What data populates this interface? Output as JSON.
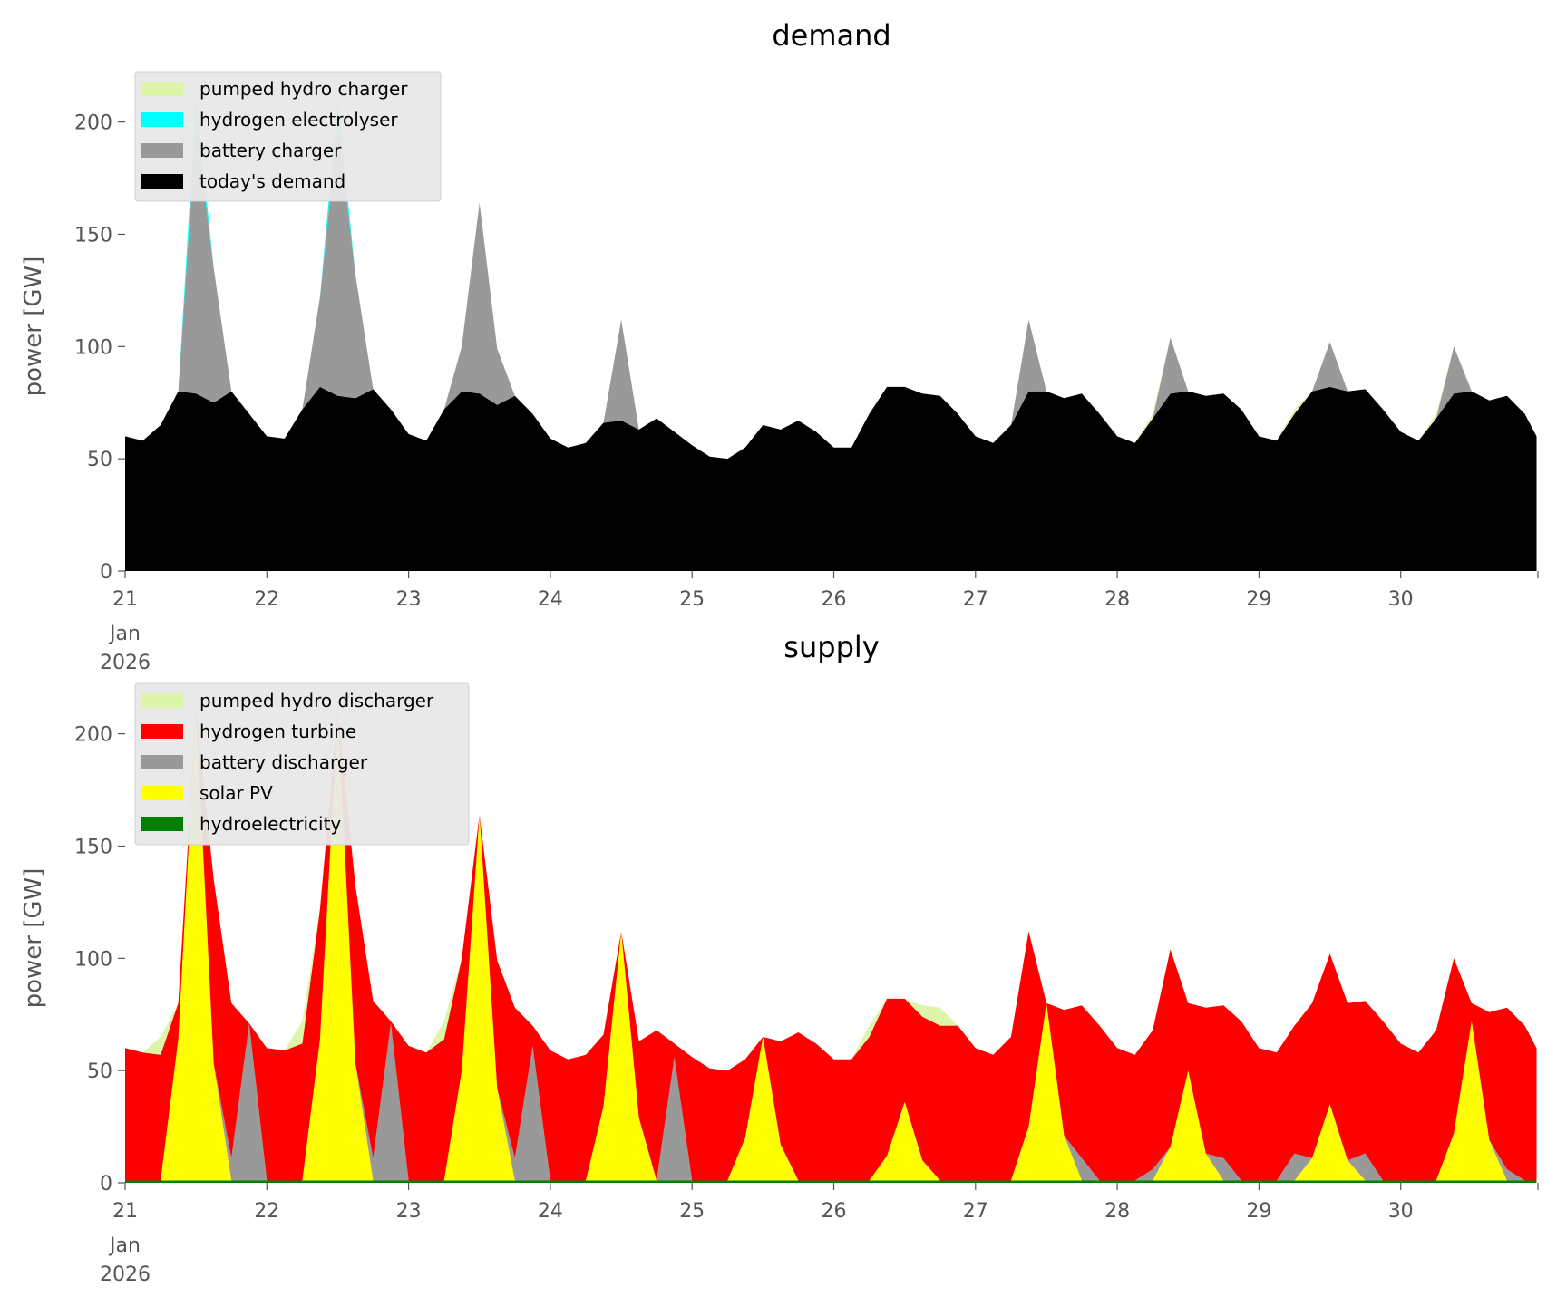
{
  "chart_data": [
    {
      "type": "area",
      "stacked": true,
      "title": "demand",
      "xlabel": "",
      "ylabel": "power [GW]",
      "ylim": [
        0,
        220
      ],
      "yticks": [
        "0",
        "50",
        "100",
        "150",
        "200"
      ],
      "ytick_values": [
        0,
        50,
        100,
        150,
        200
      ],
      "xticks": [
        "21",
        "22",
        "23",
        "24",
        "25",
        "26",
        "27",
        "28",
        "29",
        "30"
      ],
      "xtick_sub": [
        "Jan",
        "2026"
      ],
      "x_start": "2026-01-21 00:00",
      "x_step_hours": 3,
      "x_last_hour": 239,
      "legend_position": "upper-left",
      "legend": [
        "pumped hydro charger",
        "hydrogen electrolyser",
        "battery charger",
        "today's demand"
      ],
      "series": [
        {
          "name": "today's demand",
          "color": "#000000",
          "values": [
            60,
            58,
            65,
            80,
            79,
            75,
            80,
            70,
            60,
            59,
            72,
            82,
            78,
            77,
            81,
            72,
            61,
            58,
            72,
            80,
            79,
            74,
            78,
            70,
            59,
            55,
            57,
            66,
            67,
            63,
            68,
            62,
            56,
            51,
            50,
            55,
            65,
            63,
            67,
            62,
            55,
            55,
            70,
            82,
            82,
            79,
            78,
            70,
            60,
            57,
            65,
            80,
            80,
            77,
            79,
            70,
            60,
            57,
            68,
            79,
            80,
            78,
            79,
            72,
            60,
            58,
            70,
            80,
            82,
            80,
            81,
            72,
            62,
            58,
            68,
            79,
            80,
            76,
            78,
            70,
            60
          ]
        },
        {
          "name": "battery charger",
          "color": "#999999",
          "values": [
            0,
            0,
            0,
            0,
            120,
            60,
            0,
            0,
            0,
            0,
            0,
            40,
            122,
            55,
            0,
            0,
            0,
            0,
            0,
            20,
            85,
            25,
            0,
            0,
            0,
            0,
            0,
            0,
            45,
            0,
            0,
            0,
            0,
            0,
            0,
            0,
            0,
            0,
            0,
            0,
            0,
            0,
            0,
            0,
            0,
            0,
            0,
            0,
            0,
            0,
            0,
            32,
            0,
            0,
            0,
            0,
            0,
            0,
            0,
            25,
            0,
            0,
            0,
            0,
            0,
            0,
            0,
            0,
            20,
            0,
            0,
            0,
            0,
            0,
            0,
            21,
            0,
            0,
            0,
            0,
            0
          ]
        },
        {
          "name": "hydrogen electrolyser",
          "color": "#00ffff",
          "values": [
            0,
            0,
            0,
            0,
            12,
            0,
            0,
            0,
            0,
            0,
            0,
            0,
            10,
            0,
            0,
            0,
            0,
            0,
            0,
            0,
            0,
            0,
            0,
            0,
            0,
            0,
            0,
            0,
            0,
            0,
            0,
            0,
            0,
            0,
            0,
            0,
            0,
            0,
            0,
            0,
            0,
            0,
            0,
            0,
            0,
            0,
            0,
            0,
            0,
            0,
            0,
            0,
            0,
            0,
            0,
            0,
            0,
            0,
            0,
            0,
            0,
            0,
            0,
            0,
            0,
            0,
            0,
            0,
            0,
            0,
            0,
            0,
            0,
            0,
            0,
            0,
            0,
            0,
            0,
            0,
            0
          ]
        },
        {
          "name": "pumped hydro charger",
          "color": "#ddf5a8",
          "values": [
            0,
            0,
            0,
            0,
            0,
            0,
            0,
            0,
            0,
            0,
            0,
            0,
            0,
            0,
            0,
            0,
            0,
            0,
            0,
            0,
            0,
            0,
            0,
            0,
            0,
            0,
            0,
            0,
            0,
            0,
            0,
            0,
            0,
            0,
            0,
            0,
            0,
            0,
            0,
            0,
            0,
            0,
            0,
            0,
            0,
            0,
            0,
            0,
            0,
            0,
            0,
            0,
            0,
            0,
            0,
            0,
            0,
            0,
            2,
            0,
            0,
            0,
            0,
            0,
            0,
            0,
            2,
            0,
            0,
            0,
            0,
            0,
            0,
            0,
            2,
            0,
            0,
            0,
            0,
            0,
            0
          ]
        }
      ]
    },
    {
      "type": "area",
      "stacked": true,
      "title": "supply",
      "xlabel": "",
      "ylabel": "power [GW]",
      "ylim": [
        0,
        220
      ],
      "yticks": [
        "0",
        "50",
        "100",
        "150",
        "200"
      ],
      "ytick_values": [
        0,
        50,
        100,
        150,
        200
      ],
      "xticks": [
        "21",
        "22",
        "23",
        "24",
        "25",
        "26",
        "27",
        "28",
        "29",
        "30"
      ],
      "xtick_sub": [
        "Jan",
        "2026"
      ],
      "x_start": "2026-01-21 00:00",
      "x_step_hours": 3,
      "x_last_hour": 239,
      "legend_position": "upper-left",
      "legend": [
        "pumped hydro discharger",
        "hydrogen turbine",
        "battery discharger",
        "solar PV",
        "hydroelectricity"
      ],
      "series": [
        {
          "name": "hydroelectricity",
          "color": "#008000",
          "values": [
            1,
            1,
            1,
            1,
            1,
            1,
            1,
            1,
            1,
            1,
            1,
            1,
            1,
            1,
            1,
            1,
            1,
            1,
            1,
            1,
            1,
            1,
            1,
            1,
            1,
            1,
            1,
            1,
            1,
            1,
            1,
            1,
            1,
            1,
            1,
            1,
            1,
            1,
            1,
            1,
            1,
            1,
            1,
            1,
            1,
            1,
            1,
            1,
            1,
            1,
            1,
            1,
            1,
            1,
            1,
            1,
            1,
            1,
            1,
            1,
            1,
            1,
            1,
            1,
            1,
            1,
            1,
            1,
            1,
            1,
            1,
            1,
            1,
            1,
            1,
            1,
            1,
            1,
            1,
            1,
            1
          ]
        },
        {
          "name": "solar PV",
          "color": "#ffff00",
          "values": [
            0,
            0,
            0,
            63,
            210,
            52,
            0,
            0,
            0,
            0,
            0,
            63,
            209,
            52,
            0,
            0,
            0,
            0,
            0,
            49,
            163,
            41,
            0,
            0,
            0,
            0,
            0,
            33,
            111,
            28,
            0,
            0,
            0,
            0,
            0,
            19,
            64,
            16,
            0,
            0,
            0,
            0,
            0,
            11,
            35,
            9,
            0,
            0,
            0,
            0,
            0,
            24,
            79,
            20,
            0,
            0,
            0,
            0,
            0,
            15,
            49,
            12,
            0,
            0,
            0,
            0,
            0,
            10,
            34,
            9,
            0,
            0,
            0,
            0,
            0,
            21,
            71,
            18,
            0,
            0,
            0
          ]
        },
        {
          "name": "battery discharger",
          "color": "#999999",
          "values": [
            0,
            0,
            0,
            0,
            0,
            0,
            10,
            70,
            0,
            0,
            0,
            0,
            0,
            0,
            10,
            70,
            0,
            0,
            0,
            0,
            0,
            0,
            10,
            60,
            0,
            0,
            0,
            0,
            0,
            0,
            0,
            55,
            0,
            0,
            0,
            0,
            0,
            0,
            0,
            0,
            0,
            0,
            0,
            0,
            0,
            0,
            0,
            0,
            0,
            0,
            0,
            0,
            0,
            0,
            10,
            0,
            0,
            0,
            5,
            0,
            0,
            0,
            10,
            0,
            0,
            0,
            12,
            0,
            0,
            0,
            12,
            0,
            0,
            0,
            0,
            0,
            0,
            0,
            5,
            0,
            0
          ]
        },
        {
          "name": "hydrogen turbine",
          "color": "#ff0000",
          "values": [
            59,
            57,
            56,
            16,
            0,
            82,
            69,
            0,
            59,
            58,
            61,
            58,
            0,
            79,
            70,
            1,
            60,
            57,
            63,
            50,
            0,
            57,
            67,
            9,
            58,
            54,
            56,
            32,
            0,
            34,
            67,
            6,
            55,
            50,
            49,
            35,
            0,
            46,
            66,
            61,
            54,
            54,
            64,
            70,
            46,
            64,
            69,
            69,
            59,
            56,
            64,
            87,
            0,
            56,
            68,
            69,
            59,
            56,
            62,
            88,
            30,
            65,
            68,
            71,
            59,
            57,
            57,
            69,
            67,
            70,
            68,
            71,
            61,
            57,
            67,
            78,
            8,
            57,
            72,
            69,
            59
          ]
        },
        {
          "name": "pumped hydro discharger",
          "color": "#ddf5a8",
          "values": [
            0,
            0,
            8,
            0,
            0,
            0,
            0,
            0,
            0,
            0,
            10,
            0,
            0,
            0,
            0,
            0,
            0,
            0,
            8,
            0,
            0,
            0,
            0,
            0,
            0,
            0,
            0,
            0,
            0,
            0,
            0,
            0,
            0,
            0,
            0,
            0,
            0,
            0,
            0,
            0,
            0,
            0,
            5,
            0,
            0,
            5,
            8,
            0,
            0,
            0,
            0,
            0,
            0,
            0,
            0,
            0,
            0,
            0,
            0,
            0,
            0,
            0,
            0,
            0,
            0,
            0,
            0,
            0,
            0,
            0,
            0,
            0,
            0,
            0,
            0,
            0,
            0,
            0,
            0,
            0,
            0
          ]
        }
      ]
    }
  ]
}
